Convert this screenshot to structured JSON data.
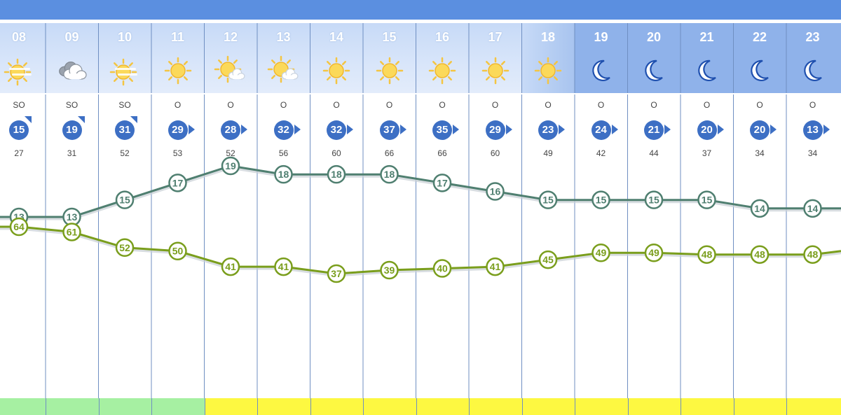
{
  "chart_data": {
    "type": "line",
    "title": "",
    "xlabel": "",
    "ylabel": "",
    "x": [
      "08",
      "09",
      "10",
      "11",
      "12",
      "13",
      "14",
      "15",
      "16",
      "17",
      "18",
      "19",
      "20",
      "21",
      "22",
      "23"
    ],
    "periods": [
      "day",
      "day",
      "day",
      "day",
      "day",
      "day",
      "day",
      "day",
      "day",
      "day",
      "transition",
      "night",
      "night",
      "night",
      "night",
      "night"
    ],
    "weather_icons": [
      "sun-haze",
      "cloud",
      "sun-haze",
      "sun",
      "sun-cloud",
      "sun-cloud",
      "sun",
      "sun",
      "sun",
      "sun",
      "sun",
      "moon",
      "moon",
      "moon",
      "moon",
      "moon"
    ],
    "wind_direction": [
      "SO",
      "SO",
      "SO",
      "O",
      "O",
      "O",
      "O",
      "O",
      "O",
      "O",
      "O",
      "O",
      "O",
      "O",
      "O",
      "O"
    ],
    "wind_speed": [
      15,
      19,
      31,
      29,
      28,
      32,
      32,
      37,
      35,
      29,
      23,
      24,
      21,
      20,
      20,
      13
    ],
    "gusts": [
      27,
      31,
      52,
      53,
      52,
      56,
      60,
      66,
      66,
      60,
      49,
      42,
      44,
      37,
      34,
      34
    ],
    "series": [
      {
        "values": [
          13,
          13,
          15,
          17,
          19,
          18,
          18,
          18,
          17,
          16,
          15,
          15,
          15,
          15,
          14,
          14
        ],
        "color": "#4f7f70"
      },
      {
        "values": [
          64,
          61,
          52,
          50,
          41,
          41,
          37,
          39,
          40,
          41,
          45,
          49,
          49,
          48,
          48,
          48
        ],
        "color": "#7a9e1c"
      }
    ],
    "bottom_strip": [
      "#a6f0a2",
      "#a6f0a2",
      "#a6f0a2",
      "#a6f0a2",
      "#fdf841",
      "#fdf841",
      "#fdf841",
      "#fdf841",
      "#fdf841",
      "#fdf841",
      "#fdf841",
      "#fdf841",
      "#fdf841",
      "#fdf841",
      "#fdf841",
      "#fdf841"
    ],
    "colors": {
      "top_bar": "#5b8fe0",
      "wind_badge": "#3d6fc4",
      "grid": "#6f8fc2"
    }
  }
}
